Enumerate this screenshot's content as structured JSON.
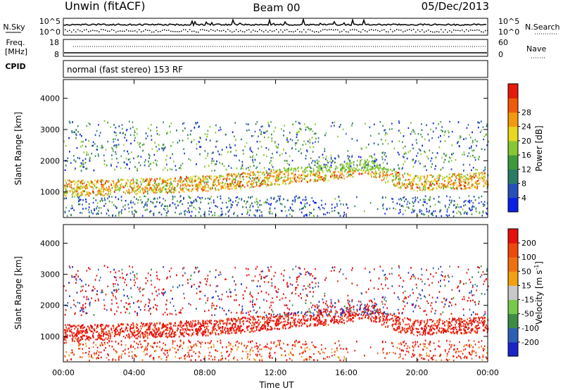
{
  "header": {
    "station": "Unwin (fitACF)",
    "beam": "Beam 00",
    "date": "05/Dec/2013"
  },
  "top_strip": {
    "nsky_label": "N.Sky",
    "nsky_ticks": [
      "10^5",
      "10^0"
    ],
    "nsearch_label": "N.Search",
    "nsearch_ticks": [
      "10^5",
      "10^0"
    ],
    "freq_label": "Freq.",
    "freq_unit": "[MHz]",
    "freq_ticks": [
      "18",
      "8"
    ],
    "nave_label": "Nave",
    "nave_ticks": [
      "60",
      "0"
    ],
    "cpid_label": "CPID",
    "cpid_text": "normal (fast stereo) 153 RF"
  },
  "chart_data": [
    {
      "type": "heatmap",
      "name": "power",
      "ylabel": "Slant Range [km]",
      "xlabel": "",
      "xlim": [
        0,
        24
      ],
      "ylim": [
        180,
        4600
      ],
      "x_ticks": [
        0,
        4,
        8,
        12,
        16,
        20,
        24
      ],
      "y_ticks": [
        1000,
        2000,
        3000,
        4000
      ],
      "colorbar": {
        "label": "Power [dB]",
        "ticks": [
          "4",
          "8",
          "12",
          "16",
          "20",
          "24",
          "28"
        ],
        "colors": [
          "#0b1ee6",
          "#264fb8",
          "#2a7a66",
          "#3f9a3a",
          "#86c832",
          "#e8d81e",
          "#f39a0c",
          "#f05a08",
          "#e6180c"
        ]
      },
      "main_band": [
        {
          "t": 0.0,
          "r": 1150
        },
        {
          "t": 2.0,
          "r": 1150
        },
        {
          "t": 4.0,
          "r": 1200
        },
        {
          "t": 6.0,
          "r": 1250
        },
        {
          "t": 8.0,
          "r": 1300
        },
        {
          "t": 10.0,
          "r": 1380
        },
        {
          "t": 12.0,
          "r": 1500
        },
        {
          "t": 14.0,
          "r": 1600
        },
        {
          "t": 16.0,
          "r": 1700
        },
        {
          "t": 17.0,
          "r": 1850
        },
        {
          "t": 18.0,
          "r": 1600
        },
        {
          "t": 19.0,
          "r": 1400
        },
        {
          "t": 20.0,
          "r": 1300
        },
        {
          "t": 22.0,
          "r": 1350
        },
        {
          "t": 24.0,
          "r": 1400
        }
      ]
    },
    {
      "type": "heatmap",
      "name": "velocity",
      "ylabel": "Slant Range [km]",
      "xlabel": "Time UT",
      "xlim": [
        0,
        24
      ],
      "ylim": [
        180,
        4600
      ],
      "x_ticks": [
        0,
        4,
        8,
        12,
        16,
        20,
        24
      ],
      "x_tick_labels": [
        "00:00",
        "04:00",
        "08:00",
        "12:00",
        "16:00",
        "20:00",
        "00:00"
      ],
      "y_ticks": [
        1000,
        2000,
        3000,
        4000
      ],
      "colorbar": {
        "label": "Velocity [m s",
        "label_sup": "-1",
        "label_end": "]",
        "ticks": [
          "200",
          "100",
          "50",
          "15",
          "-15",
          "-50",
          "-100",
          "-200"
        ],
        "colors": [
          "#1a24c8",
          "#2e5fb4",
          "#3c8c46",
          "#78c84a",
          "#c8c8c8",
          "#f0a010",
          "#f07010",
          "#f04808",
          "#e6100c"
        ]
      }
    }
  ]
}
